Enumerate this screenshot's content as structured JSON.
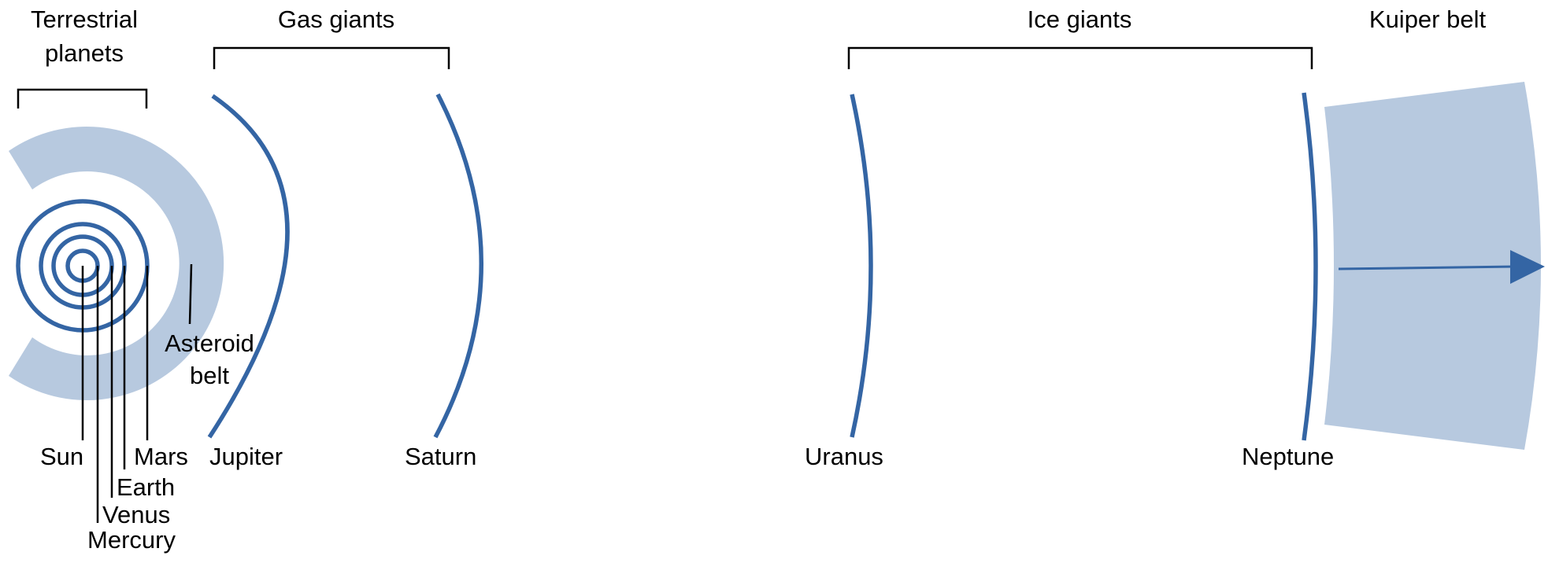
{
  "colors": {
    "orbit": "#3465a4",
    "belt": "#b7c9df",
    "bracket": "#000000",
    "text": "#000000",
    "background": "#ffffff"
  },
  "groups": {
    "terrestrial_line1": "Terrestrial",
    "terrestrial_line2": "planets",
    "gas_giants": "Gas giants",
    "ice_giants": "Ice giants",
    "kuiper_belt": "Kuiper belt"
  },
  "bodies": {
    "sun": "Sun",
    "mercury": "Mercury",
    "venus": "Venus",
    "earth": "Earth",
    "mars": "Mars",
    "asteroid_belt_line1": "Asteroid",
    "asteroid_belt_line2": "belt",
    "jupiter": "Jupiter",
    "saturn": "Saturn",
    "uranus": "Uranus",
    "neptune": "Neptune"
  }
}
